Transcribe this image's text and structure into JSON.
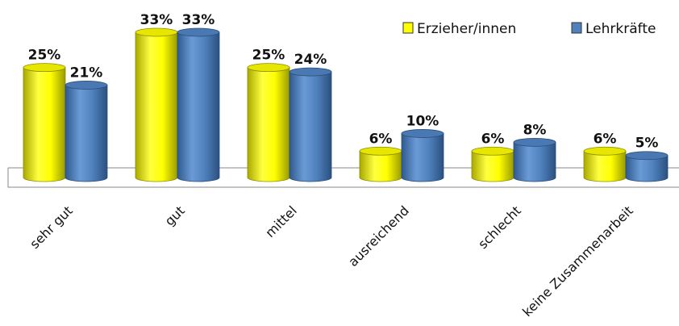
{
  "chart_data": {
    "type": "bar",
    "style": "3d-cylinder",
    "categories": [
      "sehr gut",
      "gut",
      "mittel",
      "ausreichend",
      "schlecht",
      "keine Zusammenarbeit"
    ],
    "series": [
      {
        "name": "Erzieher/innen",
        "values": [
          25,
          33,
          25,
          6,
          6,
          6
        ],
        "labels": [
          "25%",
          "33%",
          "25%",
          "6%",
          "6%",
          "6%"
        ],
        "color": "#ffff00"
      },
      {
        "name": "Lehrkräfte",
        "values": [
          21,
          33,
          24,
          10,
          8,
          5
        ],
        "labels": [
          "21%",
          "33%",
          "24%",
          "10%",
          "8%",
          "5%"
        ],
        "color": "#4f81bd"
      }
    ],
    "unit": "%",
    "ylim": [
      0,
      33
    ],
    "legend_position": "top-right",
    "grid": false,
    "title": "",
    "xlabel": "",
    "ylabel": ""
  }
}
